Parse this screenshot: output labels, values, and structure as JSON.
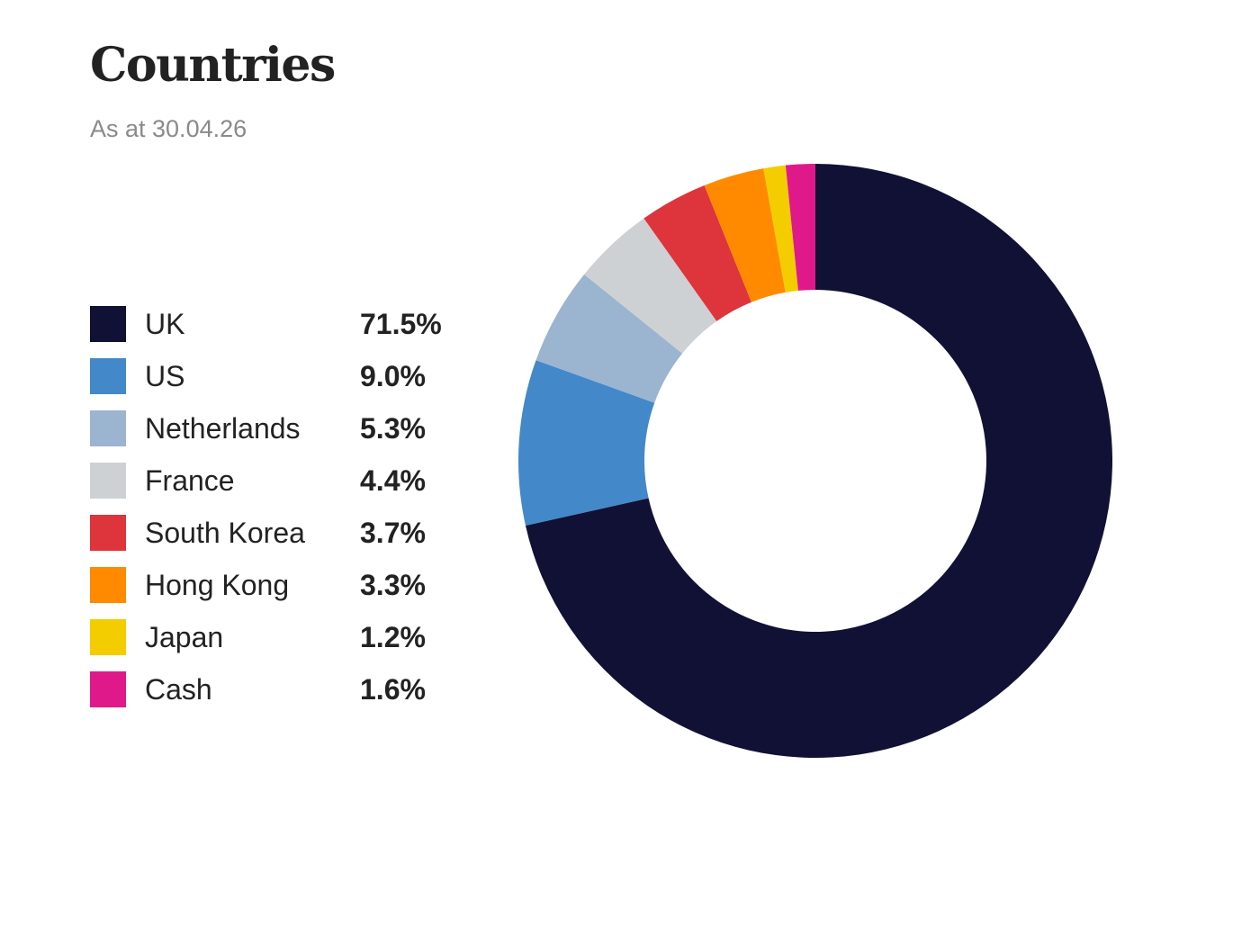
{
  "header": {
    "title": "Countries",
    "subtitle": "As at 30.04.26"
  },
  "chart_data": {
    "type": "pie",
    "title": "Countries",
    "subtitle": "As at 30.04.26",
    "donut": true,
    "start": "12 o'clock, clockwise",
    "legend_position": "left",
    "categories": [
      "UK",
      "US",
      "Netherlands",
      "France",
      "South Korea",
      "Hong Kong",
      "Japan",
      "Cash"
    ],
    "values": [
      71.5,
      9.0,
      5.3,
      4.4,
      3.7,
      3.3,
      1.2,
      1.6
    ],
    "value_labels": [
      "71.5%",
      "9.0%",
      "5.3%",
      "4.4%",
      "3.7%",
      "3.3%",
      "1.2%",
      "1.6%"
    ],
    "colors": [
      "#111135",
      "#4388c8",
      "#9bb4cf",
      "#cdd1d4",
      "#de343b",
      "#ff8a00",
      "#f3cd00",
      "#e0198a"
    ],
    "unit": "%"
  }
}
